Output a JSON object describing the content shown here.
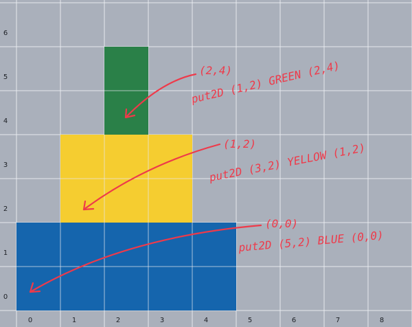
{
  "diagram": {
    "colors": {
      "background": "#aab0bb",
      "grid_line": "#e6e9ee",
      "annotation": "#ee3a4a",
      "blue": "#1565ad",
      "yellow": "#f5cd30",
      "green": "#2a8048"
    },
    "x_ticks": [
      "0",
      "1",
      "2",
      "3",
      "4",
      "5",
      "6",
      "7",
      "8"
    ],
    "y_ticks": [
      "0",
      "1",
      "2",
      "3",
      "4",
      "5",
      "6"
    ],
    "blocks": [
      {
        "name": "blue-block",
        "color": "#1565ad",
        "col": 0,
        "row": 0,
        "cols": 5,
        "rows": 2
      },
      {
        "name": "yellow-block",
        "color": "#f5cd30",
        "col": 1,
        "row": 2,
        "cols": 3,
        "rows": 2
      },
      {
        "name": "green-block",
        "color": "#2a8048",
        "col": 2,
        "row": 4,
        "cols": 1,
        "rows": 2
      }
    ],
    "annotations": [
      {
        "name": "green-annotation",
        "coord": "(2,4)",
        "label": "put2D (1,2) GREEN (2,4)"
      },
      {
        "name": "yellow-annotation",
        "coord": "(1,2)",
        "label": "put2D (3,2) YELLOW (1,2)"
      },
      {
        "name": "blue-annotation",
        "coord": "(0,0)",
        "label": "put2D (5,2) BLUE (0,0)"
      }
    ]
  }
}
